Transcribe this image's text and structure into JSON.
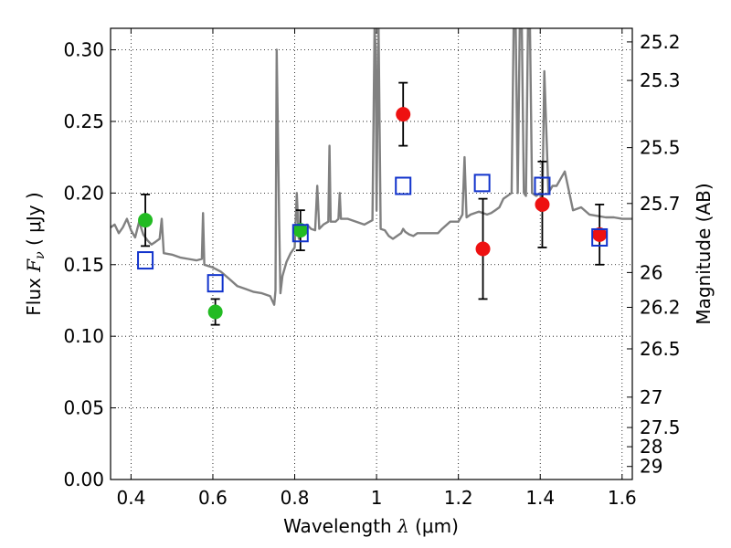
{
  "chart_data": {
    "type": "scatter",
    "xlabel": {
      "prefix": "Wavelength  ",
      "symbol": "λ",
      "unit": " (μm)"
    },
    "ylabel": {
      "prefix": "Flux  ",
      "symbol": "F",
      "subscript": "ν",
      "unit": "  ( μJy )"
    },
    "ylabel_right": "Magnitude (AB)",
    "xlim": [
      0.35,
      1.625
    ],
    "ylim": [
      0.0,
      0.315
    ],
    "grid": true,
    "x_ticks": [
      0.4,
      0.6,
      0.8,
      1.0,
      1.2,
      1.4,
      1.6
    ],
    "x_tick_labels": [
      "0.4",
      "0.6",
      "0.8",
      "1",
      "1.2",
      "1.4",
      "1.6"
    ],
    "y_ticks": [
      0.0,
      0.05,
      0.1,
      0.15,
      0.2,
      0.25,
      0.3
    ],
    "y_tick_labels": [
      "0.00",
      "0.05",
      "0.10",
      "0.15",
      "0.20",
      "0.25",
      "0.30"
    ],
    "right_ticks": [
      {
        "flux": 0.3055,
        "label": "25.2"
      },
      {
        "flux": 0.2786,
        "label": "25.3"
      },
      {
        "flux": 0.2317,
        "label": "25.5"
      },
      {
        "flux": 0.1927,
        "label": "25.7"
      },
      {
        "flux": 0.1445,
        "label": "26"
      },
      {
        "flux": 0.1202,
        "label": "26.2"
      },
      {
        "flux": 0.0912,
        "label": "26.5"
      },
      {
        "flux": 0.0575,
        "label": "27"
      },
      {
        "flux": 0.0363,
        "label": "27.5"
      },
      {
        "flux": 0.0229,
        "label": "28"
      },
      {
        "flux": 0.0091,
        "label": "29"
      }
    ],
    "series": [
      {
        "marker": "circle-filled",
        "color": "#22bb22",
        "points": [
          {
            "x": 0.435,
            "y": 0.181,
            "err": 0.018
          },
          {
            "x": 0.606,
            "y": 0.117,
            "err": 0.009
          },
          {
            "x": 0.814,
            "y": 0.174,
            "err": 0.014
          }
        ]
      },
      {
        "marker": "circle-filled",
        "color": "#ee1111",
        "points": [
          {
            "x": 1.065,
            "y": 0.255,
            "err": 0.022
          },
          {
            "x": 1.26,
            "y": 0.161,
            "err": 0.035
          },
          {
            "x": 1.405,
            "y": 0.192,
            "err": 0.03
          },
          {
            "x": 1.545,
            "y": 0.171,
            "err": 0.021
          }
        ]
      },
      {
        "marker": "square-open",
        "color": "#1133cc",
        "points": [
          {
            "x": 0.435,
            "y": 0.153
          },
          {
            "x": 0.606,
            "y": 0.137
          },
          {
            "x": 0.814,
            "y": 0.172
          },
          {
            "x": 1.065,
            "y": 0.205
          },
          {
            "x": 1.258,
            "y": 0.207
          },
          {
            "x": 1.405,
            "y": 0.205
          },
          {
            "x": 1.545,
            "y": 0.169
          }
        ]
      }
    ],
    "spectrum": {
      "color": "#808080",
      "x": [
        0.35,
        0.36,
        0.37,
        0.38,
        0.39,
        0.4,
        0.41,
        0.42,
        0.43,
        0.44,
        0.45,
        0.46,
        0.47,
        0.475,
        0.48,
        0.5,
        0.52,
        0.54,
        0.56,
        0.573,
        0.576,
        0.579,
        0.6,
        0.62,
        0.64,
        0.66,
        0.68,
        0.7,
        0.72,
        0.74,
        0.75,
        0.753,
        0.756,
        0.759,
        0.762,
        0.765,
        0.77,
        0.78,
        0.79,
        0.8,
        0.805,
        0.81,
        0.82,
        0.83,
        0.84,
        0.85,
        0.855,
        0.86,
        0.87,
        0.882,
        0.885,
        0.888,
        0.9,
        0.907,
        0.91,
        0.913,
        0.93,
        0.95,
        0.97,
        0.99,
        0.995,
        0.998,
        1.0,
        1.002,
        1.005,
        1.01,
        1.02,
        1.03,
        1.04,
        1.05,
        1.06,
        1.065,
        1.07,
        1.08,
        1.09,
        1.1,
        1.12,
        1.14,
        1.15,
        1.16,
        1.18,
        1.2,
        1.21,
        1.215,
        1.22,
        1.23,
        1.25,
        1.26,
        1.27,
        1.28,
        1.29,
        1.3,
        1.31,
        1.33,
        1.335,
        1.34,
        1.345,
        1.35,
        1.355,
        1.36,
        1.365,
        1.37,
        1.375,
        1.38,
        1.39,
        1.4,
        1.405,
        1.41,
        1.42,
        1.43,
        1.44,
        1.45,
        1.46,
        1.48,
        1.5,
        1.52,
        1.54,
        1.56,
        1.58,
        1.6,
        1.625
      ],
      "y": [
        0.176,
        0.178,
        0.172,
        0.176,
        0.182,
        0.174,
        0.169,
        0.18,
        0.171,
        0.167,
        0.164,
        0.166,
        0.168,
        0.182,
        0.158,
        0.157,
        0.155,
        0.154,
        0.153,
        0.154,
        0.186,
        0.15,
        0.148,
        0.145,
        0.14,
        0.135,
        0.133,
        0.131,
        0.13,
        0.128,
        0.122,
        0.132,
        0.3,
        0.24,
        0.18,
        0.13,
        0.142,
        0.152,
        0.158,
        0.162,
        0.2,
        0.168,
        0.176,
        0.178,
        0.175,
        0.174,
        0.205,
        0.175,
        0.178,
        0.18,
        0.233,
        0.18,
        0.18,
        0.182,
        0.2,
        0.182,
        0.182,
        0.18,
        0.178,
        0.181,
        0.315,
        0.3,
        0.188,
        0.25,
        0.315,
        0.175,
        0.174,
        0.17,
        0.168,
        0.17,
        0.172,
        0.175,
        0.173,
        0.171,
        0.17,
        0.172,
        0.172,
        0.172,
        0.172,
        0.175,
        0.18,
        0.18,
        0.185,
        0.225,
        0.183,
        0.185,
        0.187,
        0.186,
        0.185,
        0.186,
        0.188,
        0.19,
        0.196,
        0.2,
        0.315,
        0.315,
        0.2,
        0.315,
        0.315,
        0.2,
        0.198,
        0.315,
        0.315,
        0.2,
        0.198,
        0.2,
        0.19,
        0.285,
        0.2,
        0.205,
        0.205,
        0.21,
        0.215,
        0.188,
        0.19,
        0.185,
        0.184,
        0.183,
        0.183,
        0.182,
        0.182
      ]
    }
  }
}
